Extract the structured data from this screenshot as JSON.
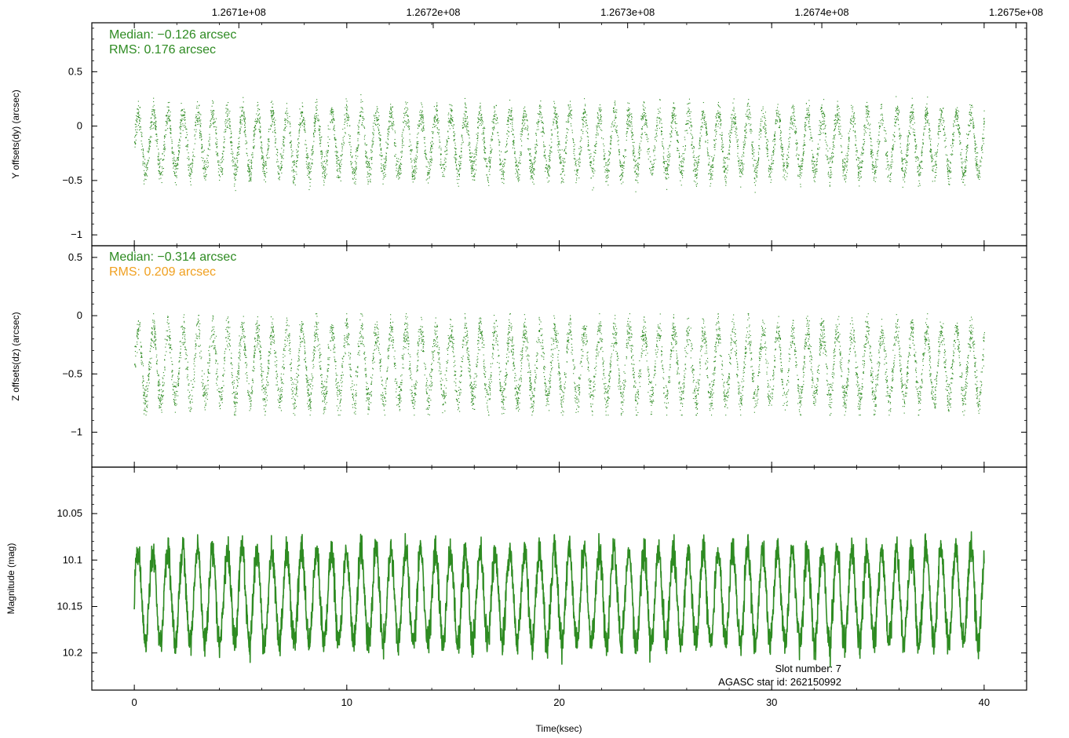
{
  "chart_data": {
    "type": "scatter",
    "shared_x": {
      "label": "Time(ksec)",
      "range": [
        -2,
        42
      ],
      "ticks": [
        0,
        10,
        20,
        30,
        40
      ],
      "data_span": [
        0,
        40
      ]
    },
    "top_axis": {
      "tick_labels": [
        "1.2671e+08",
        "1.2672e+08",
        "1.2673e+08",
        "1.2674e+08",
        "1.2675e+08"
      ],
      "tick_values_ksec": [
        4.92,
        14.07,
        23.22,
        32.36,
        41.5
      ]
    },
    "panels": [
      {
        "id": "dy",
        "type": "scatter",
        "ylabel": "Y offsets(dy) (arcsec)",
        "ylim": [
          -1.1,
          0.95
        ],
        "yticks": [
          -1,
          -0.5,
          0,
          0.5
        ],
        "ytick_labels": [
          "−1",
          "−0.5",
          "0",
          "0.5"
        ],
        "median_text": "Median: −0.126 arcsec",
        "rms_text": "RMS: 0.176 arcsec",
        "median_color": "#2e8b22",
        "rms_color": "#2e8b22",
        "series_color": "#2e8b22",
        "signal": {
          "center": -0.15,
          "amplitude": 0.27,
          "noise": 0.09,
          "period_ksec": 0.7,
          "approx_range": [
            -0.62,
            0.3
          ]
        }
      },
      {
        "id": "dz",
        "type": "scatter",
        "ylabel": "Z offsets(dz) (arcsec)",
        "ylim": [
          -1.3,
          0.6
        ],
        "yticks": [
          -1,
          -0.5,
          0,
          0.5
        ],
        "ytick_labels": [
          "−1",
          "−0.5",
          "0",
          "0.5"
        ],
        "median_text": "Median: −0.314 arcsec",
        "rms_text": "RMS: 0.209 arcsec",
        "median_color": "#2e8b22",
        "rms_color": "#f0a020",
        "series_color": "#2e8b22",
        "signal": {
          "center": -0.42,
          "amplitude": 0.3,
          "noise": 0.1,
          "period_ksec": 0.7,
          "approx_range": [
            -0.85,
            0.02
          ]
        }
      },
      {
        "id": "mag",
        "type": "line",
        "ylabel": "Magnitude (mag)",
        "ylim": [
          10.0,
          10.24
        ],
        "y_inverted": true,
        "yticks": [
          10.05,
          10.1,
          10.15,
          10.2
        ],
        "ytick_labels": [
          "10.05",
          "10.1",
          "10.15",
          "10.2"
        ],
        "series_color": "#2e8b22",
        "signal": {
          "center": 10.14,
          "amplitude": 0.05,
          "noise": 0.012,
          "period_ksec": 0.7,
          "approx_range": [
            10.03,
            10.22
          ]
        }
      }
    ],
    "annotations": {
      "slot_text": "Slot number: 7",
      "agasc_text": "AGASC star id: 262150992"
    }
  }
}
